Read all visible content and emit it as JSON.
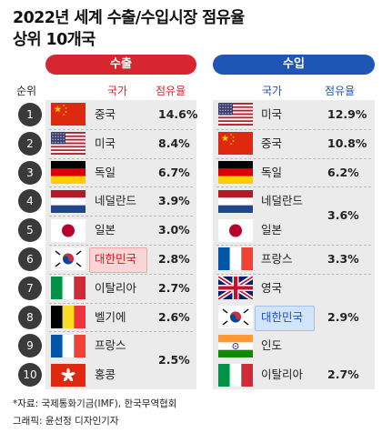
{
  "title": {
    "line1": "2022년 세계 수출/수입시장 점유율",
    "line2": "상위 10개국"
  },
  "sections": {
    "export_label": "수출",
    "import_label": "수입"
  },
  "headers": {
    "rank": "순위",
    "export_country": "국가",
    "export_share": "점유율",
    "import_country": "국가",
    "import_share": "점유율"
  },
  "ranks": [
    "1",
    "2",
    "3",
    "4",
    "5",
    "6",
    "7",
    "8",
    "9",
    "10"
  ],
  "exports": [
    {
      "country": "중국",
      "share": "14.6%",
      "flag": "china-flag"
    },
    {
      "country": "미국",
      "share": "8.4%",
      "flag": "usa-flag"
    },
    {
      "country": "독일",
      "share": "6.7%",
      "flag": "germany-flag"
    },
    {
      "country": "네덜란드",
      "share": "3.9%",
      "flag": "netherlands-flag"
    },
    {
      "country": "일본",
      "share": "3.0%",
      "flag": "japan-flag"
    },
    {
      "country": "대한민국",
      "share": "2.8%",
      "flag": "korea-flag",
      "highlight": true
    },
    {
      "country": "이탈리아",
      "share": "2.7%",
      "flag": "italy-flag"
    },
    {
      "country": "벨기에",
      "share": "2.6%",
      "flag": "belgium-flag"
    },
    {
      "country": "프랑스",
      "share": "",
      "flag": "france-flag"
    },
    {
      "country": "홍콩",
      "share": "",
      "flag": "hongkong-flag"
    }
  ],
  "export_shared_share": {
    "ranks": "9-10",
    "share": "2.5%"
  },
  "imports": [
    {
      "country": "미국",
      "share": "12.9%",
      "flag": "usa-flag"
    },
    {
      "country": "중국",
      "share": "10.8%",
      "flag": "china-flag"
    },
    {
      "country": "독일",
      "share": "6.2%",
      "flag": "germany-flag"
    },
    {
      "country": "네덜란드",
      "share": "",
      "flag": "netherlands-flag"
    },
    {
      "country": "일본",
      "share": "",
      "flag": "japan-flag"
    },
    {
      "country": "프랑스",
      "share": "3.3%",
      "flag": "france-flag"
    },
    {
      "country": "영국",
      "share": "",
      "flag": "uk-flag"
    },
    {
      "country": "대한민국",
      "share": "",
      "flag": "korea-flag",
      "highlight": true
    },
    {
      "country": "인도",
      "share": "",
      "flag": "india-flag"
    },
    {
      "country": "이탈리아",
      "share": "2.7%",
      "flag": "italy-flag"
    }
  ],
  "import_shared_shares": [
    {
      "ranks": "4-5",
      "share": "3.6%"
    },
    {
      "ranks": "7-9",
      "share": "2.9%"
    }
  ],
  "colors": {
    "export_accent": "#d7262f",
    "import_accent": "#1f55b5",
    "rank_badge": "#3a3a3a",
    "panel_bg": "#ebebeb"
  },
  "footer": {
    "source": "*자료: 국제통화기금(IMF), 한국무역협회",
    "credit": "그래픽: 윤선정 디자인기자"
  }
}
